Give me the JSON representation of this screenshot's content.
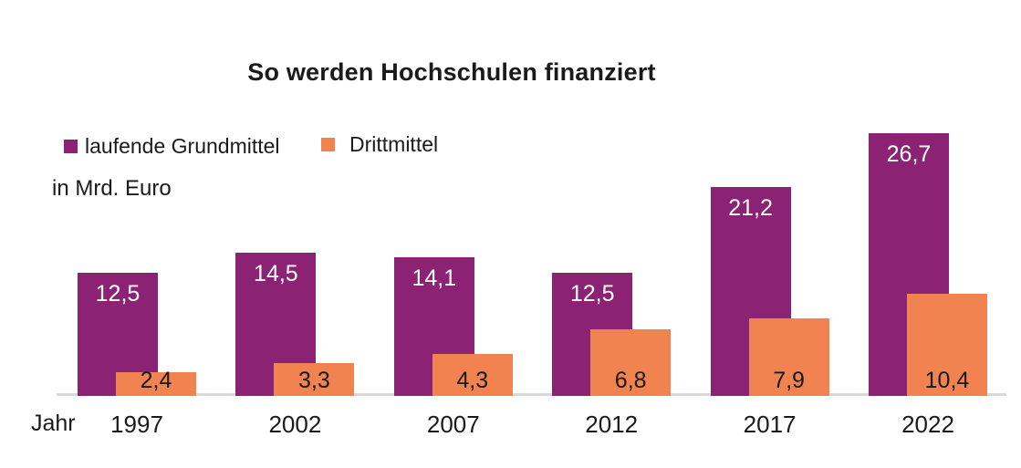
{
  "title": "So werden Hochschulen finanziert",
  "unit_note": "in Mrd. Euro",
  "x_axis_title": "Jahr",
  "colors": {
    "grundmittel": "#8B2274",
    "drittmittel": "#F0834F",
    "axis_line": "#D9D9D9",
    "title_text": "#1A1A1A"
  },
  "chart_data": {
    "type": "bar",
    "title": "So werden Hochschulen finanziert",
    "xlabel": "Jahr",
    "ylabel": "in Mrd. Euro",
    "categories": [
      "1997",
      "2002",
      "2007",
      "2012",
      "2017",
      "2022"
    ],
    "series": [
      {
        "name": "laufende Grundmittel",
        "color": "#8B2274",
        "values": [
          12.5,
          14.5,
          14.1,
          12.5,
          21.2,
          26.7
        ],
        "labels": [
          "12,5",
          "14,5",
          "14,1",
          "12,5",
          "21,2",
          "26,7"
        ],
        "label_color": "#ffffff",
        "label_position": "inside-top"
      },
      {
        "name": "Drittmittel",
        "color": "#F0834F",
        "values": [
          2.4,
          3.3,
          4.3,
          6.8,
          7.9,
          10.4
        ],
        "labels": [
          "2,4",
          "3,3",
          "4,3",
          "6,8",
          "7,9",
          "10,4"
        ],
        "label_color": "#1a1a1a",
        "label_position": "inside-bottom"
      }
    ],
    "ylim": [
      0,
      30
    ],
    "grid": false,
    "y_axis_visible": false,
    "legend_position": "top-left"
  }
}
